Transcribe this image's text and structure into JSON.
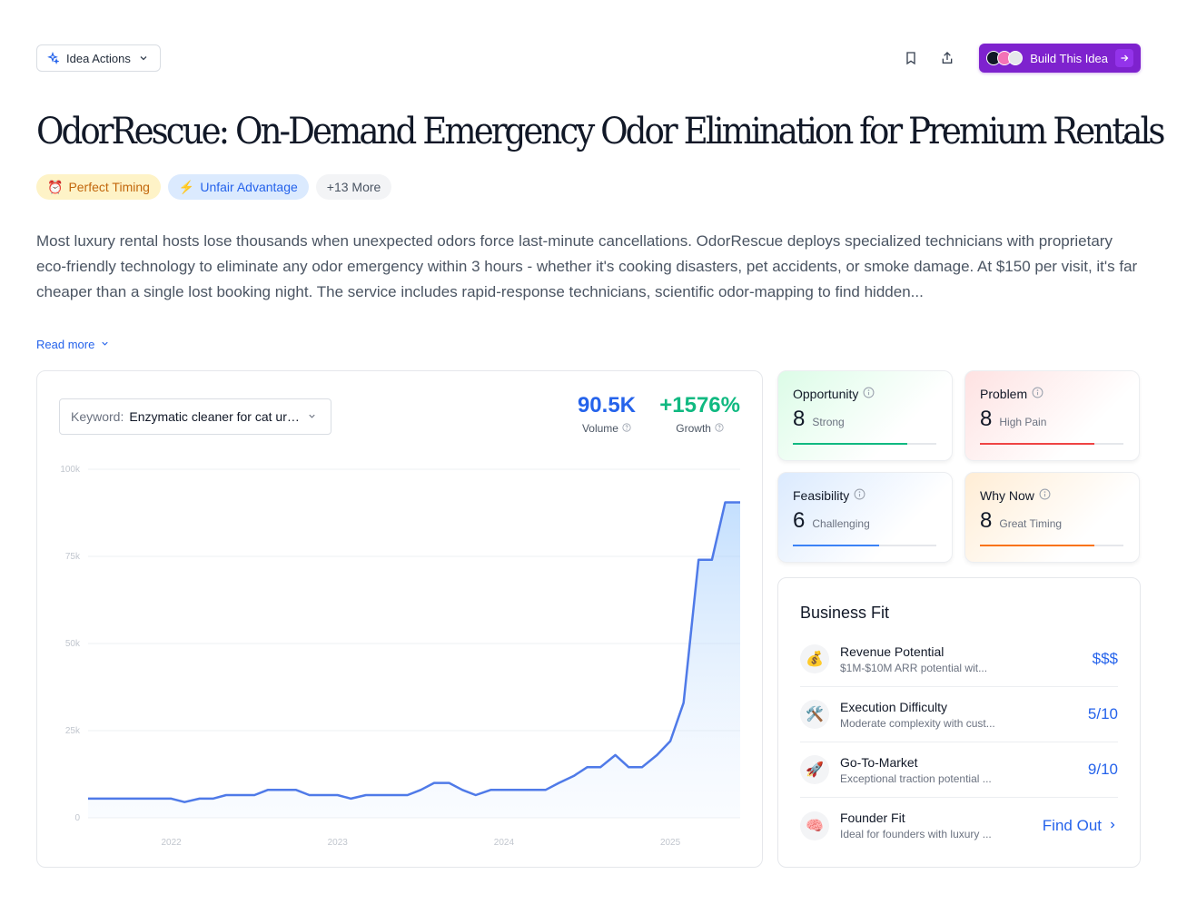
{
  "header": {
    "idea_actions_label": "Idea Actions",
    "build_label": "Build This Idea"
  },
  "title": "OdorRescue: On-Demand Emergency Odor Elimination for Premium Rentals",
  "tags": [
    {
      "label": "Perfect Timing",
      "icon": "⏰"
    },
    {
      "label": "Unfair Advantage",
      "icon": "⚡"
    },
    {
      "label": "+13 More"
    }
  ],
  "description": "Most luxury rental hosts lose thousands when unexpected odors force last-minute cancellations. OdorRescue deploys specialized technicians with proprietary eco-friendly technology to eliminate any odor emergency within 3 hours - whether it's cooking disasters, pet accidents, or smoke damage. At $150 per visit, it's far cheaper than a single lost booking night. The service includes rapid-response technicians, scientific odor-mapping to find hidden...",
  "read_more_label": "Read more",
  "keyword": {
    "label": "Keyword:",
    "value": "Enzymatic cleaner for cat urine"
  },
  "metrics": {
    "volume_value": "90.5K",
    "volume_label": "Volume",
    "growth_value": "+1576%",
    "growth_label": "Growth"
  },
  "chart_data": {
    "type": "area",
    "ylim": [
      0,
      100000
    ],
    "y_ticks": [
      {
        "value": 0,
        "label": "0"
      },
      {
        "value": 25000,
        "label": "25k"
      },
      {
        "value": 50000,
        "label": "50k"
      },
      {
        "value": 75000,
        "label": "75k"
      },
      {
        "value": 100000,
        "label": "100k"
      }
    ],
    "x_ticks": [
      {
        "x": 2022.0,
        "label": "2022"
      },
      {
        "x": 2023.0,
        "label": "2023"
      },
      {
        "x": 2024.0,
        "label": "2024"
      },
      {
        "x": 2025.0,
        "label": "2025"
      }
    ],
    "xlim": [
      2021.5,
      2025.42
    ],
    "series": [
      {
        "x": [
          2021.5,
          2021.58,
          2021.67,
          2021.75,
          2021.83,
          2021.92,
          2022.0,
          2022.08,
          2022.17,
          2022.25,
          2022.33,
          2022.42,
          2022.5,
          2022.58,
          2022.67,
          2022.75,
          2022.83,
          2022.92,
          2023.0,
          2023.08,
          2023.17,
          2023.25,
          2023.33,
          2023.42,
          2023.5,
          2023.58,
          2023.67,
          2023.75,
          2023.83,
          2023.92,
          2024.0,
          2024.08,
          2024.17,
          2024.25,
          2024.33,
          2024.42,
          2024.5,
          2024.58,
          2024.67,
          2024.75,
          2024.83,
          2024.92,
          2025.0,
          2025.08,
          2025.17,
          2025.25,
          2025.33,
          2025.42
        ],
        "values": [
          5500,
          5500,
          5500,
          5500,
          5500,
          5500,
          5500,
          4500,
          5500,
          5500,
          6500,
          6500,
          6500,
          8000,
          8000,
          8000,
          6500,
          6500,
          6500,
          5500,
          6500,
          6500,
          6500,
          6500,
          8000,
          10000,
          10000,
          8000,
          6500,
          8000,
          8000,
          8000,
          8000,
          8000,
          10000,
          12000,
          14500,
          14500,
          18000,
          14500,
          14500,
          18000,
          22000,
          33000,
          74000,
          74000,
          90500,
          90500
        ]
      }
    ]
  },
  "score_cards": [
    {
      "title": "Opportunity",
      "score": "8",
      "word": "Strong",
      "fraction": 0.8,
      "color": "#10b981"
    },
    {
      "title": "Problem",
      "score": "8",
      "word": "High Pain",
      "fraction": 0.8,
      "color": "#ef4444"
    },
    {
      "title": "Feasibility",
      "score": "6",
      "word": "Challenging",
      "fraction": 0.6,
      "color": "#3b82f6"
    },
    {
      "title": "Why Now",
      "score": "8",
      "word": "Great Timing",
      "fraction": 0.8,
      "color": "#f97316"
    }
  ],
  "business_fit": {
    "title": "Business Fit",
    "rows": [
      {
        "icon": "💰",
        "name": "Revenue Potential",
        "sub": "$1M-$10M ARR potential wit...",
        "value": "$$$"
      },
      {
        "icon": "🛠️",
        "name": "Execution Difficulty",
        "sub": "Moderate complexity with cust...",
        "value": "5/10"
      },
      {
        "icon": "🚀",
        "name": "Go-To-Market",
        "sub": "Exceptional traction potential ...",
        "value": "9/10"
      },
      {
        "icon": "🧠",
        "name": "Founder Fit",
        "sub": "Ideal for founders with luxury ...",
        "value": "Find Out"
      }
    ]
  }
}
